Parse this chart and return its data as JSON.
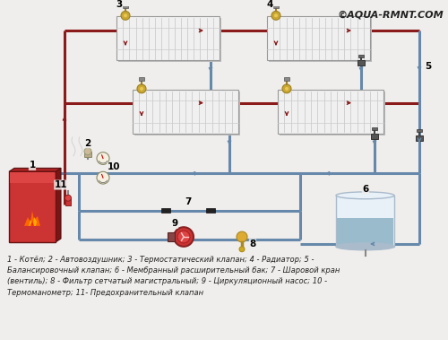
{
  "watermark": "©AQUA-RMNT.COM",
  "bg_color": "#f0eeec",
  "caption_lines": [
    "1 - Котёл; 2 - Автовоздушник; 3 - Термостатический клапан; 4 - Радиатор; 5 -",
    "Балансировочный клапан; 6 - Мембранный расширительный бак; 7 - Шаровой кран",
    "(вентиль); 8 - Фильтр сетчатый магистральный; 9 - Циркуляционный насос; 10 -",
    "Термоманометр; 11- Предохранительный клапан"
  ],
  "hot": "#8b1a1a",
  "cold": "#6688aa",
  "lw": 2.2
}
